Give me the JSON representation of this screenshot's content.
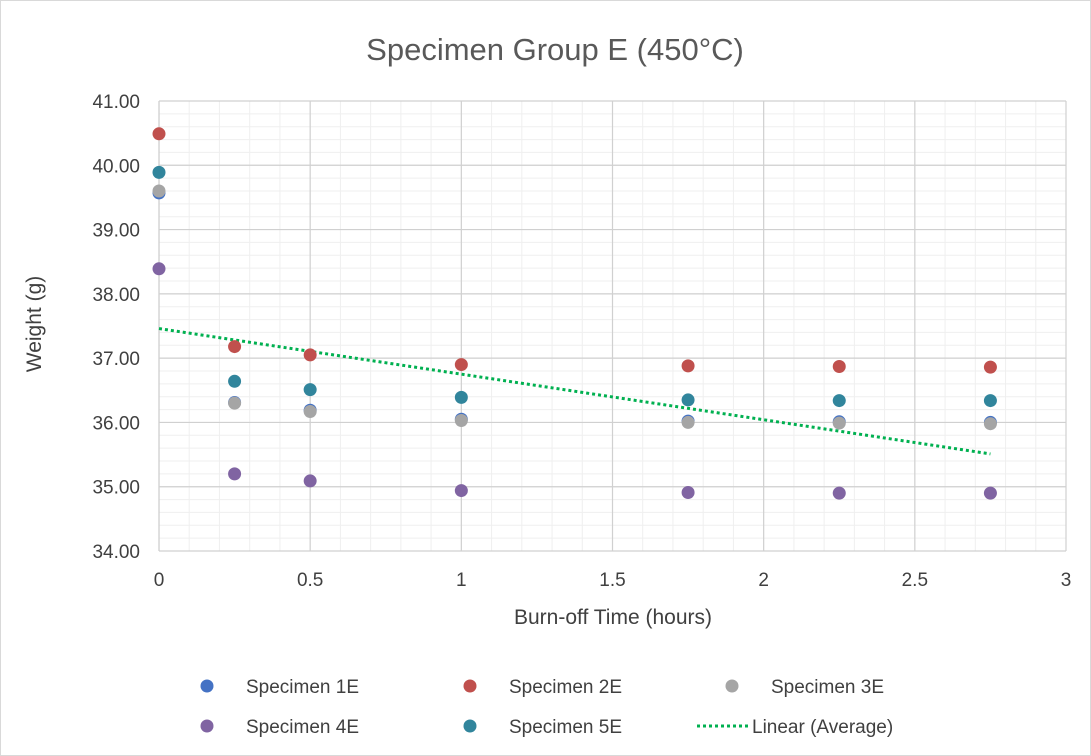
{
  "chart_data": {
    "type": "scatter",
    "title": "Specimen Group E (450°C)",
    "xlabel": "Burn-off Time (hours)",
    "ylabel": "Weight (g)",
    "xlim": [
      0,
      3
    ],
    "ylim": [
      34,
      41
    ],
    "x_ticks": [
      "0",
      "0.5",
      "1",
      "1.5",
      "2",
      "2.5",
      "3"
    ],
    "y_ticks": [
      "34.00",
      "35.00",
      "36.00",
      "37.00",
      "38.00",
      "39.00",
      "40.00",
      "41.00"
    ],
    "grid": "major and minor",
    "legend_position": "bottom",
    "x": [
      0,
      0.25,
      0.5,
      1,
      1.75,
      2.25,
      2.75
    ],
    "series": [
      {
        "name": "Specimen 1E",
        "color": "#4472C4",
        "values": [
          39.57,
          36.31,
          36.19,
          36.05,
          36.02,
          36.01,
          36.0
        ]
      },
      {
        "name": "Specimen 2E",
        "color": "#C0504D",
        "values": [
          40.49,
          37.18,
          37.05,
          36.9,
          36.88,
          36.87,
          36.86
        ]
      },
      {
        "name": "Specimen 3E",
        "color": "#A5A5A5",
        "values": [
          39.6,
          36.3,
          36.17,
          36.03,
          36.0,
          35.99,
          35.98
        ]
      },
      {
        "name": "Specimen 4E",
        "color": "#8064A2",
        "values": [
          38.39,
          35.2,
          35.09,
          34.94,
          34.91,
          34.9,
          34.9
        ]
      },
      {
        "name": "Specimen 5E",
        "color": "#31859C",
        "values": [
          39.89,
          36.64,
          36.51,
          36.39,
          36.35,
          36.34,
          36.34
        ]
      }
    ],
    "trendline": {
      "name": "Linear (Average)",
      "color": "#00B050",
      "x_start": 0,
      "y_start": 37.46,
      "x_end": 2.75,
      "y_end": 35.51
    }
  }
}
